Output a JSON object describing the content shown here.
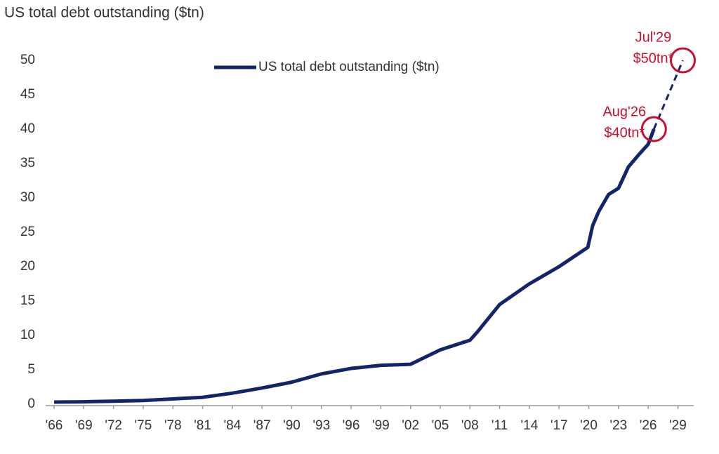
{
  "chart_data": {
    "type": "line",
    "title": "US total debt outstanding ($tn)",
    "x": [
      1966,
      1969,
      1972,
      1975,
      1978,
      1981,
      1984,
      1987,
      1990,
      1993,
      1996,
      1999,
      2002,
      2005,
      2008,
      2008.75,
      2011,
      2014,
      2017,
      2019.9,
      2020.4,
      2021,
      2022,
      2023,
      2024,
      2025,
      2026,
      2026.58
    ],
    "series": [
      {
        "name": "US total debt outstanding ($tn)",
        "color": "#14246b",
        "values": [
          0.3,
          0.35,
          0.43,
          0.54,
          0.77,
          1.0,
          1.6,
          2.35,
          3.2,
          4.4,
          5.2,
          5.65,
          5.8,
          7.9,
          9.3,
          10.5,
          14.5,
          17.5,
          20,
          22.8,
          26.0,
          28,
          30.5,
          31.4,
          34.5,
          36.2,
          37.8,
          40
        ]
      }
    ],
    "projection": {
      "x": [
        2026.58,
        2029.5
      ],
      "values": [
        40,
        50
      ],
      "color": "#14246b",
      "dashed": true
    },
    "annotations": [
      {
        "x": 2026.58,
        "y": 40,
        "lines": [
          "Aug'26",
          "$40tn*"
        ],
        "color": "#c8102e"
      },
      {
        "x": 2029.5,
        "y": 50,
        "lines": [
          "Jul'29",
          "$50tn*"
        ],
        "color": "#c8102e"
      }
    ],
    "xlim": [
      1966,
      2030.6
    ],
    "ylim": [
      0,
      50
    ],
    "yticks": [
      0,
      5,
      10,
      15,
      20,
      25,
      30,
      35,
      40,
      45,
      50
    ],
    "xticks": [
      {
        "value": 1966,
        "label": "'66"
      },
      {
        "value": 1969,
        "label": "'69"
      },
      {
        "value": 1972,
        "label": "'72"
      },
      {
        "value": 1975,
        "label": "'75"
      },
      {
        "value": 1978,
        "label": "'78"
      },
      {
        "value": 1981,
        "label": "'81"
      },
      {
        "value": 1984,
        "label": "'84"
      },
      {
        "value": 1987,
        "label": "'87"
      },
      {
        "value": 1990,
        "label": "'90"
      },
      {
        "value": 1993,
        "label": "'93"
      },
      {
        "value": 1996,
        "label": "'96"
      },
      {
        "value": 1999,
        "label": "'99"
      },
      {
        "value": 2002,
        "label": "'02"
      },
      {
        "value": 2005,
        "label": "'05"
      },
      {
        "value": 2008,
        "label": "'08"
      },
      {
        "value": 2011,
        "label": "'11"
      },
      {
        "value": 2014,
        "label": "'14"
      },
      {
        "value": 2017,
        "label": "'17"
      },
      {
        "value": 2020,
        "label": "'20"
      },
      {
        "value": 2023,
        "label": "'23"
      },
      {
        "value": 2026,
        "label": "'26"
      },
      {
        "value": 2029,
        "label": "'29"
      }
    ],
    "grid": false
  }
}
